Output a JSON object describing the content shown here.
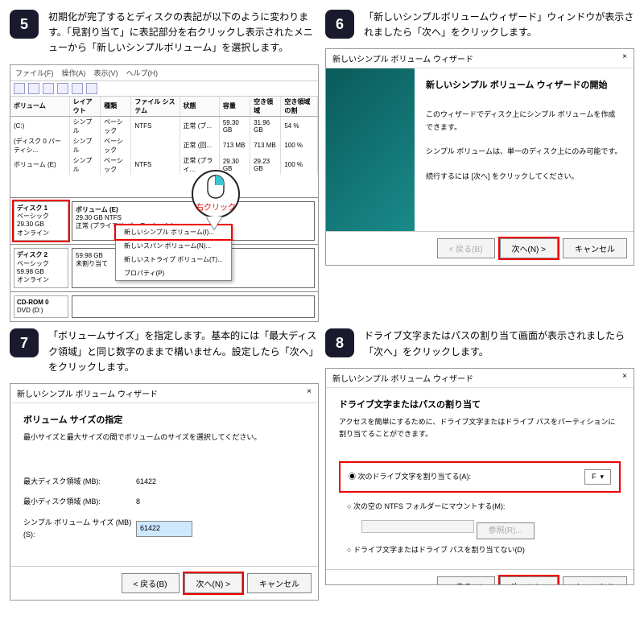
{
  "steps": {
    "s5": {
      "num": "5",
      "text": "初期化が完了するとディスクの表記が以下のように変わります。「見割り当て」に表記部分を右クリックし表示されたメニューから「新しいシンプルボリューム」を選択します。"
    },
    "s6": {
      "num": "6",
      "text": "「新しいシンプルボリュームウィザード」ウィンドウが表示されましたら「次へ」をクリックします。"
    },
    "s7": {
      "num": "7",
      "text": "「ボリュームサイズ」を指定します。基本的には「最大ディスク領域」と同じ数字のままで構いません。設定したら「次へ」をクリックします。"
    },
    "s8": {
      "num": "8",
      "text": "ドライブ文字またはパスの割り当て画面が表示されましたら「次へ」をクリックします。"
    }
  },
  "diskmgr": {
    "menu": [
      "ファイル(F)",
      "操作(A)",
      "表示(V)",
      "ヘルプ(H)"
    ],
    "cols": [
      "ボリューム",
      "レイアウト",
      "種類",
      "ファイル システム",
      "状態",
      "容量",
      "空き領域",
      "空き領域の割"
    ],
    "rows": [
      [
        "(C:)",
        "シンプル",
        "ベーシック",
        "NTFS",
        "正常 (ブ...",
        "59.30 GB",
        "31.96 GB",
        "54 %"
      ],
      [
        "(ディスク 0 パーティシ...",
        "シンプル",
        "ベーシック",
        "",
        "正常 (回...",
        "713 MB",
        "713 MB",
        "100 %"
      ],
      [
        "ボリューム (E)",
        "シンプル",
        "ベーシック",
        "NTFS",
        "正常 (プライ...",
        "29.30 GB",
        "29.23 GB",
        "100 %"
      ]
    ],
    "disk1": {
      "title": "ディスク 1",
      "sub": "ベーシック",
      "size": "29.30 GB",
      "state": "オンライン",
      "part_title": "ボリューム (E)",
      "part_line2": "29.30 GB NTFS",
      "part_line3": "正常 (プライマリ パーティション)"
    },
    "disk2": {
      "title": "ディスク 2",
      "sub": "ベーシック",
      "size": "59.98 GB",
      "state": "オンライン",
      "part_line1": "59.98 GB",
      "part_line2": "未割り当て"
    },
    "cd": {
      "title": "CD-ROM 0",
      "sub": "DVD (D:)"
    },
    "ctx": [
      "新しいシンプル ボリューム(I)...",
      "新しいスパン ボリューム(N)...",
      "新しいストライプ ボリューム(T)...",
      "プロパティ(P)"
    ],
    "mouse_label": "右クリック"
  },
  "wiz": {
    "title": "新しいシンプル ボリューム ウィザード",
    "close": "×",
    "start_h": "新しいシンプル ボリューム ウィザードの開始",
    "start_p1": "このウィザードでディスク上にシンプル ボリュームを作成できます。",
    "start_p2": "シンプル ボリュームは、単一のディスク上にのみ可能です。",
    "start_p3": "続行するには [次へ] をクリックしてください。",
    "back": "< 戻る(B)",
    "next": "次へ(N) >",
    "cancel": "キャンセル",
    "size_h": "ボリューム サイズの指定",
    "size_sub": "最小サイズと最大サイズの間でボリュームのサイズを選択してください。",
    "max_k": "最大ディスク領域 (MB):",
    "max_v": "61422",
    "min_k": "最小ディスク領域 (MB):",
    "min_v": "8",
    "vol_k": "シンプル ボリューム サイズ (MB)(S):",
    "vol_v": "61422",
    "drv_h": "ドライブ文字またはパスの割り当て",
    "drv_sub": "アクセスを簡単にするために、ドライブ文字またはドライブ パスをパーティションに割り当てることができます。",
    "drv_opt1": "次のドライブ文字を割り当てる(A):",
    "drv_letter": "F",
    "drv_opt2": "次の空の NTFS フォルダーにマウントする(M):",
    "drv_browse": "参照(R)...",
    "drv_opt3": "ドライブ文字またはドライブ パスを割り当てない(D)"
  },
  "colors": {
    "accent_red": "#e00",
    "step_bg": "#1a1a2e"
  }
}
